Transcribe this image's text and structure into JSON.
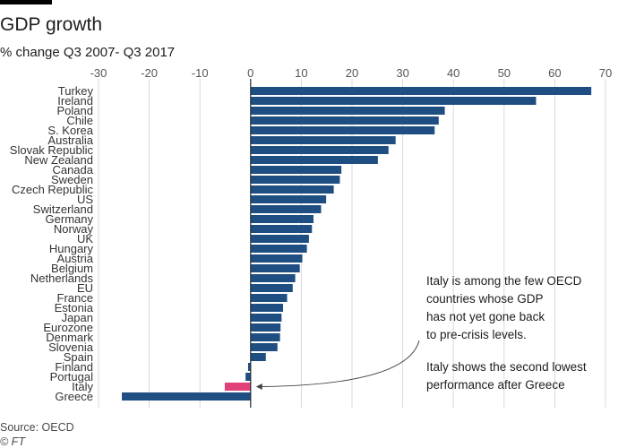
{
  "header": {
    "title": "GDP growth",
    "subtitle": "% change Q3 2007- Q3 2017"
  },
  "footer": {
    "source": "Source: OECD",
    "credit": "© FT"
  },
  "colors": {
    "bar": "#1f4e82",
    "highlight": "#e0417a",
    "grid": "#d9d9d9",
    "zero_line": "#262a33"
  },
  "chart_data": {
    "type": "bar",
    "orientation": "horizontal",
    "title": "GDP growth",
    "subtitle": "% change Q3 2007- Q3 2017",
    "xlim": [
      -30,
      70
    ],
    "xticks": [
      -30,
      -20,
      -10,
      0,
      10,
      20,
      30,
      40,
      50,
      60,
      70
    ],
    "grid": true,
    "highlight": "Italy",
    "categories": [
      "Turkey",
      "Ireland",
      "Poland",
      "Chile",
      "S. Korea",
      "Australia",
      "Slovak Republic",
      "New Zealand",
      "Canada",
      "Sweden",
      "Czech Republic",
      "US",
      "Switzerland",
      "Germany",
      "Norway",
      "UK",
      "Hungary",
      "Austria",
      "Belgium",
      "Netherlands",
      "EU",
      "France",
      "Estonia",
      "Japan",
      "Eurozone",
      "Denmark",
      "Slovenia",
      "Spain",
      "Finland",
      "Portugal",
      "Italy",
      "Greece"
    ],
    "values": [
      67.2,
      56.3,
      38.3,
      37.1,
      36.3,
      28.6,
      27.2,
      25.1,
      17.9,
      17.6,
      16.4,
      14.9,
      13.9,
      12.4,
      12.1,
      11.5,
      11.1,
      10.2,
      9.7,
      8.8,
      8.3,
      7.2,
      6.4,
      6.1,
      5.9,
      5.8,
      5.3,
      3.0,
      -0.5,
      -1.0,
      -5.1,
      -25.4
    ],
    "annotations": [
      {
        "target": "Italy",
        "lines": [
          "Italy is among the few OECD",
          "countries whose GDP",
          "has not yet gone back",
          "to pre-crisis levels.",
          "",
          "Italy shows the second lowest",
          "performance after Greece"
        ]
      }
    ]
  }
}
